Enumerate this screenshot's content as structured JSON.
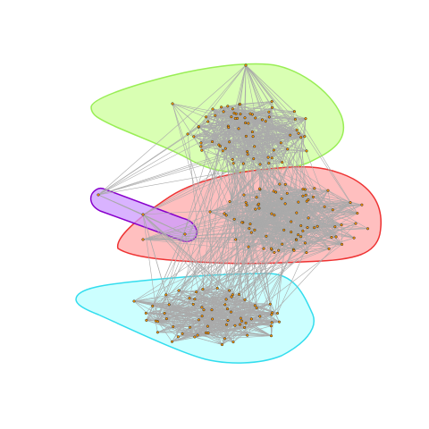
{
  "diagram": {
    "type": "network-graph-with-community-hulls",
    "communities": [
      {
        "name": "green-community",
        "fill": "#ccff99",
        "stroke": "#99ee55",
        "approx_node_count": 70
      },
      {
        "name": "red-community",
        "fill": "#ffaaaa",
        "stroke": "#ee3333",
        "approx_node_count": 80
      },
      {
        "name": "cyan-community",
        "fill": "#bbffff",
        "stroke": "#33ddee",
        "approx_node_count": 65
      },
      {
        "name": "purple-community",
        "fill": "#cc99ff",
        "stroke": "#8800cc",
        "approx_node_count": 3
      }
    ],
    "edge_color": "#aaaaaa",
    "node_color": "#ff9900",
    "node_outline": "#222222"
  }
}
